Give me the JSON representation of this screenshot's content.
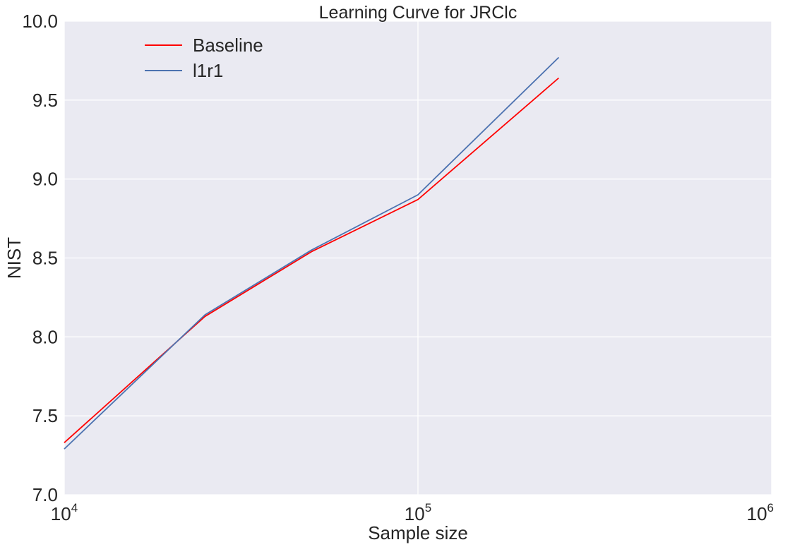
{
  "chart_data": {
    "type": "line",
    "title": "Learning Curve for JRClc",
    "xlabel": "Sample size",
    "ylabel": "NIST",
    "xscale": "log",
    "xlim": [
      10000,
      1000000
    ],
    "ylim": [
      7.0,
      10.0
    ],
    "x_ticks": [
      {
        "value": 10000,
        "base": "10",
        "exp": "4"
      },
      {
        "value": 100000,
        "base": "10",
        "exp": "5"
      },
      {
        "value": 1000000,
        "base": "10",
        "exp": "6"
      }
    ],
    "y_ticks": [
      "7.0",
      "7.5",
      "8.0",
      "8.5",
      "9.0",
      "9.5",
      "10.0"
    ],
    "grid": true,
    "legend_position": "upper-left",
    "x": [
      10000,
      25000,
      50000,
      100000,
      250000
    ],
    "series": [
      {
        "name": "Baseline",
        "color": "#ff0000",
        "values": [
          7.33,
          8.13,
          8.54,
          8.87,
          9.64
        ]
      },
      {
        "name": "l1r1",
        "color": "#4c72b0",
        "values": [
          7.29,
          8.14,
          8.55,
          8.9,
          9.77
        ]
      }
    ],
    "colors": {
      "plot_background": "#eaeaf2",
      "grid": "#ffffff",
      "text": "#262626"
    }
  }
}
